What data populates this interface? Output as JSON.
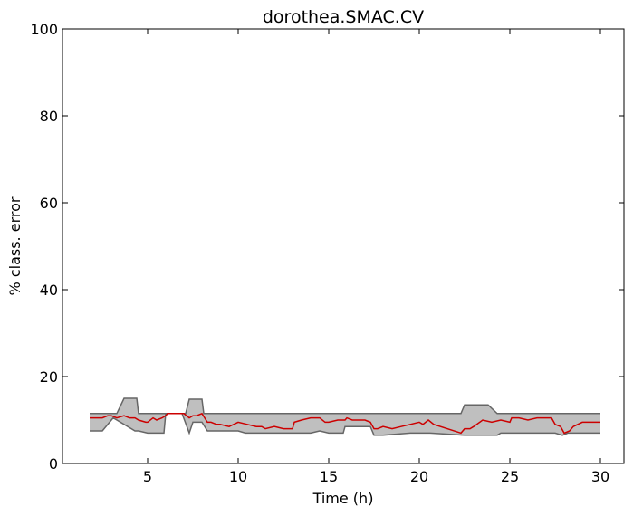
{
  "chart_data": {
    "type": "line",
    "title": "dorothea.SMAC.CV",
    "xlabel": "Time (h)",
    "ylabel": "% class. error",
    "xlim": [
      0.3,
      31.3
    ],
    "ylim": [
      0,
      100
    ],
    "xticks": [
      5,
      10,
      15,
      20,
      25,
      30
    ],
    "yticks": [
      0,
      20,
      40,
      60,
      80,
      100
    ],
    "grid": false,
    "colors": {
      "line": "#cc0000",
      "band_fill": "#bfbfbf",
      "band_edge": "#666666"
    },
    "series": [
      {
        "role": "median",
        "x": [
          1.8,
          2.5,
          2.8,
          3.0,
          3.3,
          3.7,
          4.0,
          4.3,
          4.5,
          4.9,
          5.0,
          5.3,
          5.5,
          5.8,
          6.0,
          6.1,
          7.0,
          7.3,
          7.5,
          7.7,
          8.0,
          8.3,
          8.5,
          8.8,
          9.0,
          9.5,
          10.0,
          10.5,
          11.0,
          11.3,
          11.5,
          12.0,
          12.5,
          13.0,
          13.1,
          13.5,
          14.0,
          14.5,
          14.8,
          15.0,
          15.5,
          15.9,
          16.0,
          16.3,
          17.0,
          17.3,
          17.5,
          17.7,
          18.0,
          18.5,
          19.0,
          19.5,
          20.0,
          20.2,
          20.5,
          20.8,
          22.3,
          22.5,
          22.8,
          23.0,
          23.5,
          24.0,
          24.5,
          25.0,
          25.1,
          25.5,
          26.0,
          26.5,
          27.0,
          27.3,
          27.5,
          27.8,
          28.0,
          28.3,
          28.5,
          29.0,
          29.5,
          30.0
        ],
        "y": [
          10.5,
          10.5,
          11.0,
          11.0,
          10.5,
          11.0,
          10.5,
          10.5,
          10.0,
          9.5,
          9.5,
          10.5,
          10.0,
          10.5,
          11.0,
          11.5,
          11.5,
          10.5,
          11.0,
          11.0,
          11.5,
          9.5,
          9.5,
          9.0,
          9.0,
          8.5,
          9.5,
          9.0,
          8.5,
          8.5,
          8.0,
          8.5,
          8.0,
          8.0,
          9.5,
          10.0,
          10.5,
          10.5,
          9.5,
          9.5,
          10.0,
          10.0,
          10.5,
          10.0,
          10.0,
          9.5,
          8.0,
          8.0,
          8.5,
          8.0,
          8.5,
          9.0,
          9.5,
          9.0,
          10.0,
          9.0,
          7.0,
          8.0,
          8.0,
          8.5,
          10.0,
          9.5,
          10.0,
          9.5,
          10.5,
          10.5,
          10.0,
          10.5,
          10.5,
          10.5,
          9.0,
          8.5,
          7.0,
          7.5,
          8.5,
          9.5,
          9.5,
          9.5
        ]
      },
      {
        "role": "upper_bound",
        "x": [
          1.8,
          3.3,
          3.7,
          4.4,
          4.5,
          6.0,
          6.1,
          7.1,
          7.3,
          8.0,
          8.1,
          22.3,
          22.5,
          23.8,
          24.3,
          28.0,
          28.3,
          30.0
        ],
        "y": [
          11.5,
          11.5,
          15.0,
          15.0,
          11.5,
          11.5,
          11.5,
          11.5,
          14.8,
          14.8,
          11.5,
          11.5,
          13.5,
          13.5,
          11.5,
          11.5,
          11.5,
          11.5
        ]
      },
      {
        "role": "lower_bound",
        "x": [
          1.8,
          2.5,
          3.1,
          4.3,
          4.5,
          5.0,
          5.5,
          5.9,
          6.0,
          6.9,
          7.3,
          7.5,
          8.0,
          8.3,
          10.0,
          10.4,
          13.0,
          14.0,
          14.5,
          15.0,
          15.8,
          15.9,
          17.3,
          17.5,
          18.0,
          19.5,
          20.2,
          20.6,
          22.5,
          23.2,
          24.3,
          24.5,
          25.0,
          25.1,
          27.0,
          27.5,
          27.9,
          28.2,
          30.0
        ],
        "y": [
          7.5,
          7.5,
          10.5,
          7.5,
          7.5,
          7.0,
          7.0,
          7.0,
          11.5,
          11.5,
          7.0,
          9.5,
          9.5,
          7.5,
          7.5,
          7.0,
          7.0,
          7.0,
          7.5,
          7.0,
          7.0,
          8.5,
          8.5,
          6.5,
          6.5,
          7.0,
          7.0,
          7.0,
          6.5,
          6.5,
          6.5,
          7.0,
          7.0,
          7.0,
          7.0,
          7.0,
          6.5,
          7.0,
          7.0
        ]
      }
    ]
  }
}
